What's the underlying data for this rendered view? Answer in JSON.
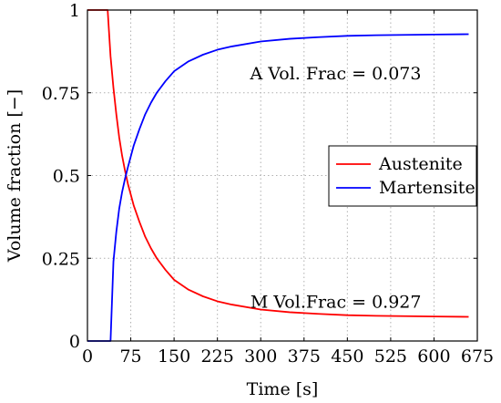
{
  "chart_data": {
    "type": "line",
    "xlabel": "Time [s]",
    "ylabel": "Volume fraction [−]",
    "xlim": [
      0,
      675
    ],
    "ylim": [
      0,
      1
    ],
    "x_ticks": [
      0,
      75,
      150,
      225,
      300,
      375,
      450,
      525,
      600,
      675
    ],
    "x_tick_labels": [
      "0",
      "75",
      "150",
      "225",
      "300",
      "375",
      "450",
      "525",
      "600",
      "675"
    ],
    "y_ticks": [
      0,
      0.25,
      0.5,
      0.75,
      1
    ],
    "y_tick_labels": [
      "0",
      "0.25",
      "0.5",
      "0.75",
      "1"
    ],
    "grid": true,
    "legend_position": "right",
    "series": [
      {
        "name": "Austenite",
        "color": "#ff0000",
        "x": [
          0,
          35,
          40,
          45,
          50,
          55,
          60,
          65,
          70,
          80,
          90,
          100,
          110,
          120,
          135,
          150,
          175,
          200,
          225,
          250,
          300,
          350,
          400,
          450,
          500,
          550,
          600,
          660
        ],
        "y": [
          1,
          1,
          0.86,
          0.765,
          0.685,
          0.615,
          0.56,
          0.515,
          0.475,
          0.41,
          0.36,
          0.315,
          0.28,
          0.25,
          0.215,
          0.185,
          0.155,
          0.135,
          0.12,
          0.11,
          0.095,
          0.087,
          0.082,
          0.078,
          0.076,
          0.075,
          0.074,
          0.073
        ]
      },
      {
        "name": "Martensite",
        "color": "#0000ff",
        "x": [
          0,
          40,
          45,
          50,
          55,
          60,
          65,
          70,
          80,
          90,
          100,
          110,
          120,
          135,
          150,
          175,
          200,
          225,
          250,
          300,
          350,
          400,
          450,
          500,
          550,
          600,
          660
        ],
        "y": [
          0,
          0,
          0.24,
          0.33,
          0.4,
          0.45,
          0.49,
          0.525,
          0.59,
          0.64,
          0.685,
          0.72,
          0.75,
          0.785,
          0.815,
          0.845,
          0.865,
          0.88,
          0.89,
          0.905,
          0.913,
          0.918,
          0.922,
          0.924,
          0.925,
          0.926,
          0.927
        ]
      }
    ],
    "annotations": [
      {
        "text": "A Vol. Frac = 0.073",
        "x": 578,
        "y": 0.79
      },
      {
        "text": "M Vol.Frac = 0.927",
        "x": 578,
        "y": 0.1
      }
    ]
  }
}
